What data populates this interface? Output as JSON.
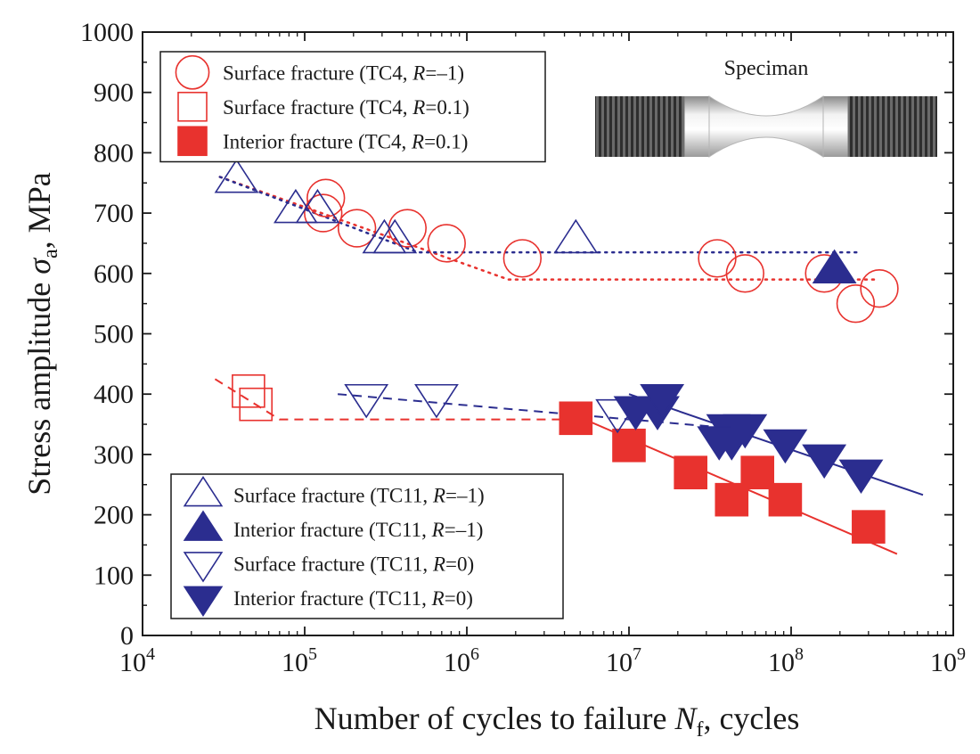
{
  "chart_data": {
    "type": "scatter",
    "x_scale": "log",
    "xlabel": "Number of cycles to failure N_f, cycles",
    "xlabel_parts": {
      "prefix": "Number of cycles to failure ",
      "var": "N",
      "sub": "f",
      "suffix": ", cycles"
    },
    "ylabel": "Stress amplitude σa, MPa",
    "ylabel_parts": {
      "prefix": "Stress amplitude ",
      "var": "σ",
      "sub": "a",
      "suffix": ", MPa"
    },
    "xlim": [
      10000,
      1000000000
    ],
    "ylim": [
      0,
      1000
    ],
    "x_ticks": [
      {
        "base": "10",
        "exp": "4",
        "value": 10000
      },
      {
        "base": "10",
        "exp": "5",
        "value": 100000
      },
      {
        "base": "10",
        "exp": "6",
        "value": 1000000
      },
      {
        "base": "10",
        "exp": "7",
        "value": 10000000
      },
      {
        "base": "10",
        "exp": "8",
        "value": 100000000
      },
      {
        "base": "10",
        "exp": "9",
        "value": 1000000000
      }
    ],
    "y_ticks": [
      0,
      100,
      200,
      300,
      400,
      500,
      600,
      700,
      800,
      900,
      1000
    ],
    "inset": {
      "title": "Speciman",
      "image": "specimen-drawing"
    },
    "series": [
      {
        "id": "tc4-surface-r-1",
        "name": "Surface fracture (TC4, R=–1)",
        "legend_prefix": "Surface fracture (TC4, ",
        "legend_var": "R",
        "legend_suffix": "=–1)",
        "marker": "circle-open",
        "color": "#e8322e",
        "points": [
          [
            130000,
            700
          ],
          [
            135000,
            725
          ],
          [
            210000,
            675
          ],
          [
            430000,
            675
          ],
          [
            750000,
            650
          ],
          [
            2200000,
            625
          ],
          [
            35000000,
            625
          ],
          [
            52000000,
            600
          ],
          [
            160000000,
            600
          ],
          [
            250000000,
            550
          ],
          [
            350000000,
            575
          ]
        ]
      },
      {
        "id": "tc4-surface-r01",
        "name": "Surface fracture (TC4, R=0.1)",
        "legend_prefix": "Surface fracture (TC4, ",
        "legend_var": "R",
        "legend_suffix": "=0.1)",
        "marker": "square-open",
        "color": "#e8322e",
        "points": [
          [
            45000,
            405
          ],
          [
            50000,
            383
          ]
        ]
      },
      {
        "id": "tc4-interior-r01",
        "name": "Interior fracture (TC4, R=0.1)",
        "legend_prefix": "Interior fracture (TC4, ",
        "legend_var": "R",
        "legend_suffix": "=0.1)",
        "marker": "square-filled",
        "color": "#e8322e",
        "points": [
          [
            4700000,
            360
          ],
          [
            10000000,
            315
          ],
          [
            24000000,
            270
          ],
          [
            43000000,
            225
          ],
          [
            62000000,
            270
          ],
          [
            92000000,
            225
          ],
          [
            300000000,
            180
          ]
        ]
      },
      {
        "id": "tc11-surface-r-1",
        "name": "Surface fracture (TC11, R=–1)",
        "legend_prefix": "Surface fracture (TC11, ",
        "legend_var": "R",
        "legend_suffix": "=–1)",
        "marker": "triangle-up-open",
        "color": "#2b2d8f",
        "points": [
          [
            38000,
            755
          ],
          [
            88000,
            705
          ],
          [
            120000,
            705
          ],
          [
            310000,
            655
          ],
          [
            360000,
            655
          ],
          [
            4700000,
            655
          ]
        ]
      },
      {
        "id": "tc11-interior-r-1",
        "name": "Interior fracture (TC11, R=–1)",
        "legend_prefix": "Interior fracture (TC11, ",
        "legend_var": "R",
        "legend_suffix": "=–1)",
        "marker": "triangle-up-filled",
        "color": "#2b2d8f",
        "points": [
          [
            185000000,
            605
          ]
        ]
      },
      {
        "id": "tc11-surface-r0",
        "name": "Surface fracture (TC11, R=0)",
        "legend_prefix": "Surface fracture (TC11, ",
        "legend_var": "R",
        "legend_suffix": "=0)",
        "marker": "triangle-down-open",
        "color": "#2b2d8f",
        "points": [
          [
            240000,
            395
          ],
          [
            650000,
            395
          ],
          [
            8500000,
            370
          ]
        ]
      },
      {
        "id": "tc11-interior-r0",
        "name": "Interior fracture (TC11, R=0)",
        "legend_prefix": "Interior fracture (TC11, ",
        "legend_var": "R",
        "legend_suffix": "=0)",
        "marker": "triangle-down-filled",
        "color": "#2b2d8f",
        "points": [
          [
            11000000,
            375
          ],
          [
            15000000,
            375
          ],
          [
            16000000,
            395
          ],
          [
            36000000,
            325
          ],
          [
            41000000,
            345
          ],
          [
            43000000,
            325
          ],
          [
            52000000,
            345
          ],
          [
            92000000,
            320
          ],
          [
            160000000,
            295
          ],
          [
            270000000,
            270
          ]
        ]
      }
    ],
    "fit_lines": [
      {
        "id": "tc4-r-1-fit",
        "color": "#e8322e",
        "style": "dotted",
        "points": [
          [
            30000,
            760
          ],
          [
            1800000,
            590
          ],
          [
            330000000,
            590
          ]
        ]
      },
      {
        "id": "tc11-r-1-fit",
        "color": "#2b2d8f",
        "style": "dotted",
        "points": [
          [
            30000,
            760
          ],
          [
            500000,
            635
          ],
          [
            270000000,
            635
          ]
        ]
      },
      {
        "id": "tc4-r01-fit",
        "color": "#e8322e",
        "style": "dashed",
        "points": [
          [
            28000,
            425
          ],
          [
            70000,
            358
          ],
          [
            4500000,
            358
          ]
        ]
      },
      {
        "id": "tc11-r0-fit",
        "color": "#2b2d8f",
        "style": "dashed",
        "points": [
          [
            160000,
            400
          ],
          [
            60000000,
            340
          ]
        ]
      },
      {
        "id": "tc4-r01-interior-fit",
        "color": "#e8322e",
        "style": "solid",
        "points": [
          [
            3800000,
            375
          ],
          [
            450000000,
            135
          ]
        ]
      },
      {
        "id": "tc11-r0-interior-fit",
        "color": "#2b2d8f",
        "style": "solid",
        "points": [
          [
            10000000,
            400
          ],
          [
            650000000,
            233
          ]
        ]
      }
    ],
    "legends": [
      {
        "id": "legend-tc4",
        "position": "top-left",
        "series": [
          "tc4-surface-r-1",
          "tc4-surface-r01",
          "tc4-interior-r01"
        ]
      },
      {
        "id": "legend-tc11",
        "position": "bottom-left",
        "series": [
          "tc11-surface-r-1",
          "tc11-interior-r-1",
          "tc11-surface-r0",
          "tc11-interior-r0"
        ]
      }
    ]
  }
}
